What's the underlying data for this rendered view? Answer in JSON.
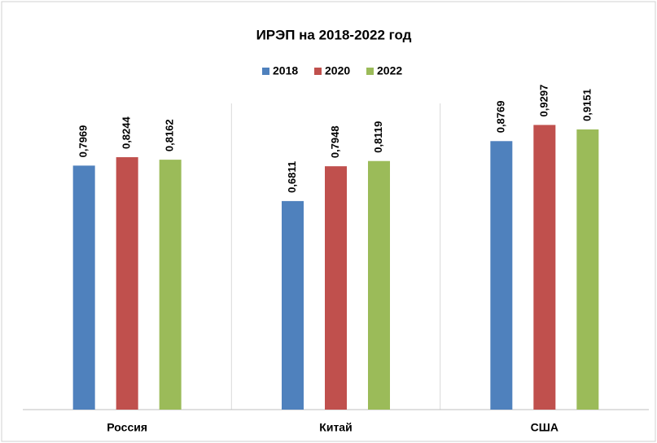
{
  "chart_data": {
    "type": "bar",
    "title": "ИРЭП на 2018-2022 год",
    "categories": [
      "Россия",
      "Китай",
      "США"
    ],
    "series": [
      {
        "name": "2018",
        "color": "#4f81bd",
        "values": [
          0.7969,
          0.6811,
          0.8769
        ],
        "value_labels": [
          "0,7969",
          "0,6811",
          "0,8769"
        ]
      },
      {
        "name": "2020",
        "color": "#c0504d",
        "values": [
          0.8244,
          0.7948,
          0.9297
        ],
        "value_labels": [
          "0,8244",
          "0,7948",
          "0,9297"
        ]
      },
      {
        "name": "2022",
        "color": "#9bbb59",
        "values": [
          0.8162,
          0.8119,
          0.9151
        ],
        "value_labels": [
          "0,8162",
          "0,8119",
          "0,9151"
        ]
      }
    ],
    "ylim": [
      0,
      1
    ],
    "legend": "top"
  }
}
